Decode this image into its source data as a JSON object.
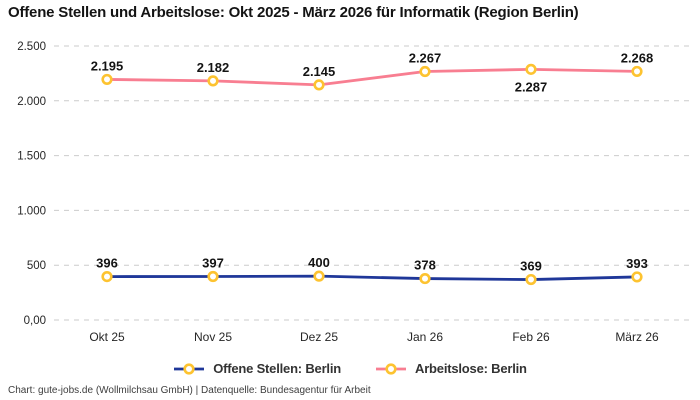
{
  "title": "Offene Stellen und Arbeitslose: Okt 2025 - März 2026 für Informatik (Region Berlin)",
  "footer": "Chart: gute-jobs.de (Wollmilchsau GmbH) | Datenquelle: Bundesagentur für Arbeit",
  "chart_data": {
    "type": "line",
    "title": "Offene Stellen und Arbeitslose: Okt 2025 - März 2026 für Informatik (Region Berlin)",
    "categories": [
      "Okt 25",
      "Nov 25",
      "Dez 25",
      "Jan 26",
      "Feb 26",
      "März 26"
    ],
    "series": [
      {
        "name": "Offene Stellen: Berlin",
        "color": "#1f3799",
        "values": [
          396,
          397,
          400,
          378,
          369,
          393
        ],
        "data_labels": [
          "396",
          "397",
          "400",
          "378",
          "369",
          "393"
        ],
        "label_positions": [
          "above",
          "above",
          "above",
          "above",
          "above",
          "above"
        ]
      },
      {
        "name": "Arbeitslose: Berlin",
        "color": "#f87e91",
        "values": [
          2195,
          2182,
          2145,
          2267,
          2287,
          2268
        ],
        "data_labels": [
          "2.195",
          "2.182",
          "2.145",
          "2.267",
          "2.287",
          "2.268"
        ],
        "label_positions": [
          "above",
          "above",
          "above",
          "above",
          "below",
          "above"
        ]
      }
    ],
    "ylim": [
      0,
      2500
    ],
    "yticks": [
      {
        "value": 0,
        "label": "0,00"
      },
      {
        "value": 500,
        "label": "500"
      },
      {
        "value": 1000,
        "label": "1.000"
      },
      {
        "value": 1500,
        "label": "1.500"
      },
      {
        "value": 2000,
        "label": "2.000"
      },
      {
        "value": 2500,
        "label": "2.500"
      }
    ],
    "grid": "horizontal-dashed",
    "legend_position": "bottom",
    "marker": {
      "fill": "#ffffff",
      "ring": "#fdc330"
    }
  },
  "colors": {
    "grid": "#cbcbcb",
    "data_label_text": "#141414",
    "axis_text": "#262626",
    "legend_text": "#333333",
    "footer_text": "#3d3d3d",
    "background": "#ffffff"
  }
}
